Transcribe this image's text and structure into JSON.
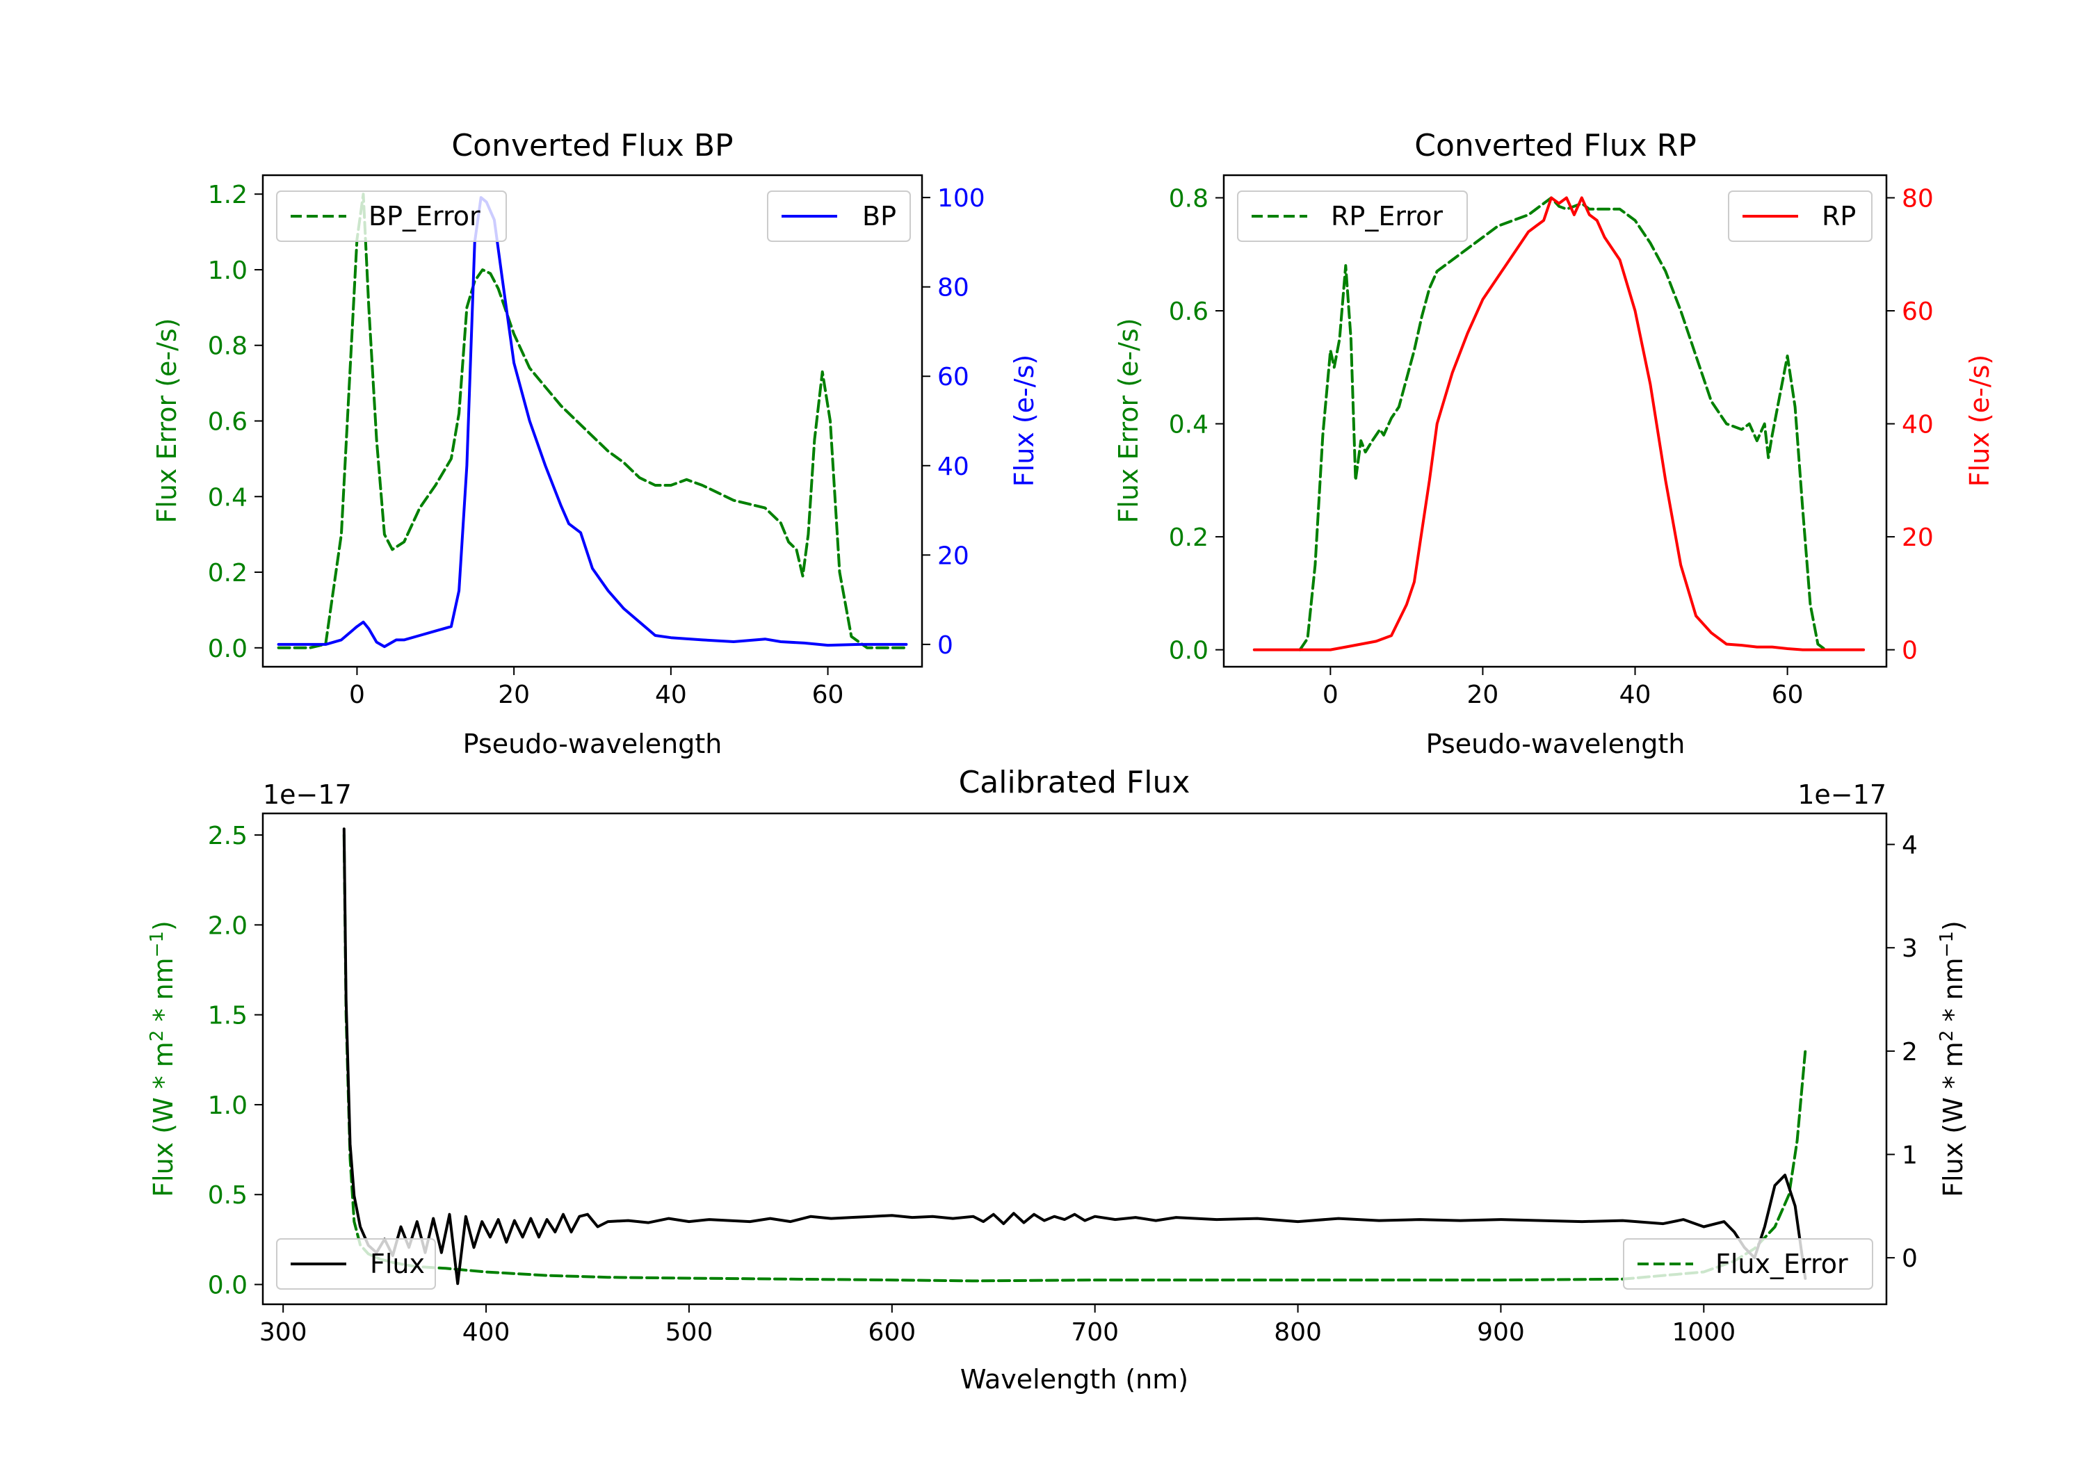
{
  "chart_data": [
    {
      "type": "line",
      "title": "Converted Flux BP",
      "xlabel": "Pseudo-wavelength",
      "ylabel_left": "Flux Error (e-/s)",
      "ylabel_right": "Flux (e-/s)",
      "xlim": [
        -12,
        72
      ],
      "ylim_left": [
        -0.05,
        1.25
      ],
      "ylim_right": [
        -5,
        105
      ],
      "xticks": [
        0,
        20,
        40,
        60
      ],
      "yticks_left": [
        0.0,
        0.2,
        0.4,
        0.6,
        0.8,
        1.0,
        1.2
      ],
      "yticks_right": [
        0,
        20,
        40,
        60,
        80,
        100
      ],
      "series": [
        {
          "name": "BP_Error",
          "axis": "left",
          "color": "#008000",
          "dash": true,
          "x": [
            -10,
            -6,
            -4,
            -2,
            0,
            0.8,
            1.5,
            2.5,
            3.5,
            4.5,
            6,
            8,
            10,
            12,
            13,
            14,
            15,
            16,
            17,
            18,
            20,
            22,
            24,
            26,
            28,
            30,
            32,
            34,
            36,
            38,
            40,
            42,
            44,
            46,
            48,
            50,
            52,
            54,
            55,
            56,
            56.8,
            57.5,
            58.3,
            59.3,
            60.3,
            61.5,
            63,
            65,
            67,
            70
          ],
          "y": [
            0,
            0,
            0.01,
            0.3,
            1.08,
            1.2,
            0.9,
            0.55,
            0.3,
            0.26,
            0.28,
            0.37,
            0.43,
            0.5,
            0.62,
            0.9,
            0.97,
            1.0,
            0.99,
            0.95,
            0.83,
            0.74,
            0.69,
            0.64,
            0.6,
            0.56,
            0.52,
            0.49,
            0.45,
            0.43,
            0.43,
            0.445,
            0.43,
            0.41,
            0.39,
            0.38,
            0.37,
            0.33,
            0.28,
            0.26,
            0.19,
            0.3,
            0.55,
            0.73,
            0.6,
            0.2,
            0.03,
            0,
            0,
            0
          ]
        },
        {
          "name": "BP",
          "axis": "right",
          "color": "#0000ff",
          "dash": false,
          "x": [
            -10,
            -4,
            -2,
            0,
            0.8,
            1.5,
            2.5,
            3.5,
            5,
            6,
            8,
            10,
            12,
            13,
            14,
            15,
            15.8,
            16.5,
            17.5,
            18.5,
            20,
            22,
            24,
            26,
            27,
            28.5,
            30,
            32,
            34,
            36,
            38,
            40,
            44,
            48,
            52,
            54,
            57,
            60,
            64,
            70
          ],
          "y": [
            0,
            0,
            1,
            4,
            5,
            3.5,
            0.5,
            -0.5,
            1,
            1,
            2,
            3,
            4,
            12,
            40,
            90,
            100,
            99,
            95,
            82,
            63,
            50,
            40,
            31,
            27,
            25,
            17,
            12,
            8,
            5,
            2,
            1.5,
            1,
            0.6,
            1.2,
            0.6,
            0.3,
            -0.2,
            0,
            0
          ]
        }
      ],
      "legend": [
        {
          "label": "BP_Error",
          "position": "upper left"
        },
        {
          "label": "BP",
          "position": "upper right"
        }
      ]
    },
    {
      "type": "line",
      "title": "Converted Flux RP",
      "xlabel": "Pseudo-wavelength",
      "ylabel_left": "Flux Error (e-/s)",
      "ylabel_right": "Flux (e-/s)",
      "xlim": [
        -14,
        73
      ],
      "ylim_left": [
        -0.03,
        0.84
      ],
      "ylim_right": [
        -3,
        84
      ],
      "xticks": [
        0,
        20,
        40,
        60
      ],
      "yticks_left": [
        0.0,
        0.2,
        0.4,
        0.6,
        0.8
      ],
      "yticks_right": [
        0,
        20,
        40,
        60,
        80
      ],
      "series": [
        {
          "name": "RP_Error",
          "axis": "left",
          "color": "#008000",
          "dash": true,
          "x": [
            -4,
            -3,
            -2,
            -1,
            0,
            0.5,
            1.2,
            2,
            2.7,
            3.3,
            4,
            4.6,
            5.5,
            6.5,
            7,
            8,
            9,
            10,
            11,
            12,
            13,
            14,
            15,
            16,
            18,
            20,
            22,
            24,
            26,
            28,
            29,
            30,
            31,
            32,
            33,
            34,
            36,
            38,
            40,
            42,
            44,
            46,
            48,
            50,
            52,
            54,
            55,
            56,
            57,
            57.5,
            58,
            59,
            60,
            61,
            62,
            63,
            64,
            65
          ],
          "y": [
            0,
            0.02,
            0.15,
            0.38,
            0.53,
            0.5,
            0.55,
            0.68,
            0.55,
            0.3,
            0.37,
            0.35,
            0.37,
            0.39,
            0.38,
            0.41,
            0.43,
            0.48,
            0.53,
            0.59,
            0.64,
            0.67,
            0.68,
            0.69,
            0.71,
            0.73,
            0.75,
            0.76,
            0.77,
            0.79,
            0.8,
            0.785,
            0.78,
            0.785,
            0.79,
            0.78,
            0.78,
            0.78,
            0.76,
            0.72,
            0.67,
            0.6,
            0.52,
            0.44,
            0.4,
            0.39,
            0.4,
            0.37,
            0.4,
            0.34,
            0.38,
            0.45,
            0.52,
            0.43,
            0.25,
            0.08,
            0.01,
            0
          ]
        },
        {
          "name": "RP",
          "axis": "right",
          "color": "#ff0000",
          "dash": false,
          "x": [
            -10,
            -4,
            -2,
            0,
            2,
            4,
            6,
            8,
            10,
            11,
            12,
            13,
            14,
            16,
            18,
            20,
            22,
            24,
            26,
            27,
            28,
            29,
            30,
            31,
            32,
            33,
            34,
            35,
            36,
            38,
            40,
            42,
            44,
            46,
            48,
            50,
            52,
            54,
            56,
            58,
            60,
            62,
            64,
            70
          ],
          "y": [
            0,
            0,
            0,
            0,
            0.5,
            1,
            1.5,
            2.5,
            8,
            12,
            21,
            30,
            40,
            49,
            56,
            62,
            66,
            70,
            74,
            75,
            76,
            80,
            79,
            80,
            77,
            80,
            77,
            76,
            73,
            69,
            60,
            47,
            30,
            15,
            6,
            3,
            1,
            0.8,
            0.5,
            0.5,
            0.2,
            0,
            0,
            0
          ]
        }
      ],
      "legend": [
        {
          "label": "RP_Error",
          "position": "upper left"
        },
        {
          "label": "RP",
          "position": "upper right"
        }
      ]
    },
    {
      "type": "line",
      "title": "Calibrated Flux",
      "xlabel": "Wavelength (nm)",
      "ylabel_left": "Flux (W * m2 * nm-1)",
      "ylabel_right": "Flux (W * m2 * nm-1)",
      "exponent_left": "1e−17",
      "exponent_right": "1e−17",
      "xlim": [
        290,
        1090
      ],
      "ylim_left": [
        -0.11,
        2.62
      ],
      "ylim_right": [
        -0.45,
        4.3
      ],
      "xticks": [
        300,
        400,
        500,
        600,
        700,
        800,
        900,
        1000
      ],
      "yticks_left": [
        0.0,
        0.5,
        1.0,
        1.5,
        2.0,
        2.5
      ],
      "yticks_right": [
        0,
        1,
        2,
        3,
        4
      ],
      "series": [
        {
          "name": "Flux_Error",
          "axis": "left",
          "color": "#008000",
          "dash": true,
          "x": [
            330,
            331,
            333,
            335,
            338,
            342,
            348,
            355,
            365,
            380,
            400,
            430,
            460,
            500,
            550,
            600,
            640,
            700,
            800,
            900,
            960,
            1000,
            1015,
            1025,
            1035,
            1042,
            1046,
            1050
          ],
          "y": [
            2.5,
            1.5,
            0.7,
            0.35,
            0.22,
            0.17,
            0.14,
            0.12,
            0.1,
            0.09,
            0.07,
            0.05,
            0.04,
            0.035,
            0.03,
            0.025,
            0.02,
            0.025,
            0.025,
            0.025,
            0.03,
            0.07,
            0.13,
            0.2,
            0.32,
            0.5,
            0.8,
            1.3
          ]
        },
        {
          "name": "Flux",
          "axis": "right",
          "color": "#000000",
          "dash": false,
          "x": [
            330,
            331,
            333,
            335,
            338,
            342,
            346,
            350,
            354,
            358,
            362,
            366,
            370,
            374,
            378,
            382,
            386,
            390,
            394,
            398,
            402,
            406,
            410,
            414,
            418,
            422,
            426,
            430,
            434,
            438,
            442,
            446,
            450,
            455,
            460,
            470,
            480,
            490,
            500,
            510,
            520,
            530,
            540,
            550,
            560,
            570,
            580,
            590,
            600,
            610,
            620,
            630,
            640,
            645,
            650,
            655,
            660,
            665,
            670,
            675,
            680,
            685,
            690,
            695,
            700,
            710,
            720,
            730,
            740,
            750,
            760,
            780,
            800,
            820,
            840,
            860,
            880,
            900,
            920,
            940,
            960,
            980,
            990,
            1000,
            1010,
            1015,
            1020,
            1025,
            1030,
            1035,
            1040,
            1045,
            1050
          ],
          "y": [
            4.15,
            2.5,
            1.1,
            0.6,
            0.3,
            0.12,
            0.05,
            0.18,
            0.02,
            0.3,
            0.1,
            0.35,
            0.05,
            0.38,
            0.05,
            0.42,
            -0.25,
            0.4,
            0.1,
            0.35,
            0.2,
            0.37,
            0.15,
            0.36,
            0.2,
            0.38,
            0.2,
            0.37,
            0.25,
            0.42,
            0.25,
            0.4,
            0.42,
            0.3,
            0.35,
            0.36,
            0.34,
            0.38,
            0.35,
            0.37,
            0.36,
            0.35,
            0.38,
            0.35,
            0.4,
            0.38,
            0.39,
            0.4,
            0.41,
            0.39,
            0.4,
            0.38,
            0.4,
            0.35,
            0.42,
            0.33,
            0.43,
            0.34,
            0.42,
            0.36,
            0.4,
            0.37,
            0.42,
            0.36,
            0.4,
            0.37,
            0.39,
            0.36,
            0.39,
            0.38,
            0.37,
            0.38,
            0.35,
            0.38,
            0.36,
            0.37,
            0.36,
            0.37,
            0.36,
            0.35,
            0.36,
            0.33,
            0.37,
            0.3,
            0.35,
            0.25,
            0.1,
            0.0,
            0.3,
            0.7,
            0.8,
            0.5,
            -0.2
          ]
        }
      ],
      "legend": [
        {
          "label": "Flux",
          "position": "lower left"
        },
        {
          "label": "Flux_Error",
          "position": "lower right"
        }
      ]
    }
  ]
}
